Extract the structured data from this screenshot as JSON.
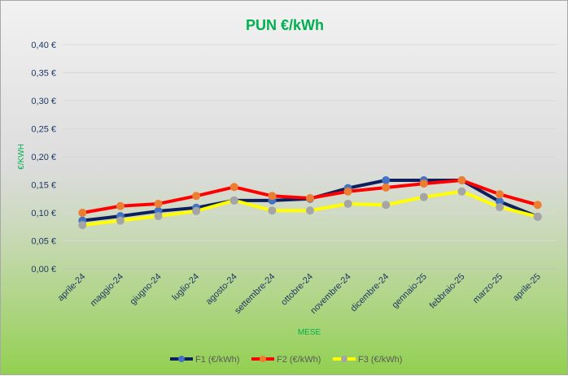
{
  "chart_data": {
    "type": "line",
    "title": "PUN €/kWh",
    "xlabel": "MESE",
    "ylabel": "€/KWH",
    "ylim": [
      0,
      0.4
    ],
    "yticks": [
      "0,00 €",
      "0,05 €",
      "0,10 €",
      "0,15 €",
      "0,20 €",
      "0,25 €",
      "0,30 €",
      "0,35 €",
      "0,40 €"
    ],
    "categories": [
      "aprile-24",
      "maggio-24",
      "giugno-24",
      "luglio-24",
      "agosto-24",
      "settembre-24",
      "ottobre-24",
      "novembre-24",
      "dicembre-24",
      "gennaio-25",
      "febbraio-25",
      "marzo-25",
      "aprile-25"
    ],
    "grid": true,
    "legend": "bottom",
    "series": [
      {
        "name": "F1 (€/kWh)",
        "line": "#0d1f5c",
        "marker": "#4472c4",
        "values": [
          0.086,
          0.094,
          0.103,
          0.109,
          0.122,
          0.122,
          0.125,
          0.144,
          0.158,
          0.158,
          0.158,
          0.12,
          0.093
        ]
      },
      {
        "name": "F2 (€/kWh)",
        "line": "#ff0000",
        "marker": "#ed7d31",
        "values": [
          0.1,
          0.112,
          0.116,
          0.13,
          0.146,
          0.13,
          0.126,
          0.138,
          0.145,
          0.152,
          0.158,
          0.133,
          0.114
        ]
      },
      {
        "name": "F3 (€/kWh)",
        "line": "#ffff00",
        "marker": "#a5a5a5",
        "values": [
          0.078,
          0.086,
          0.094,
          0.103,
          0.122,
          0.104,
          0.104,
          0.116,
          0.114,
          0.128,
          0.138,
          0.11,
          0.093
        ]
      }
    ]
  },
  "colors": {
    "title": "#00b050",
    "axis_title": "#00b050",
    "tick": "#1f3864",
    "legend_text": "#595959"
  }
}
